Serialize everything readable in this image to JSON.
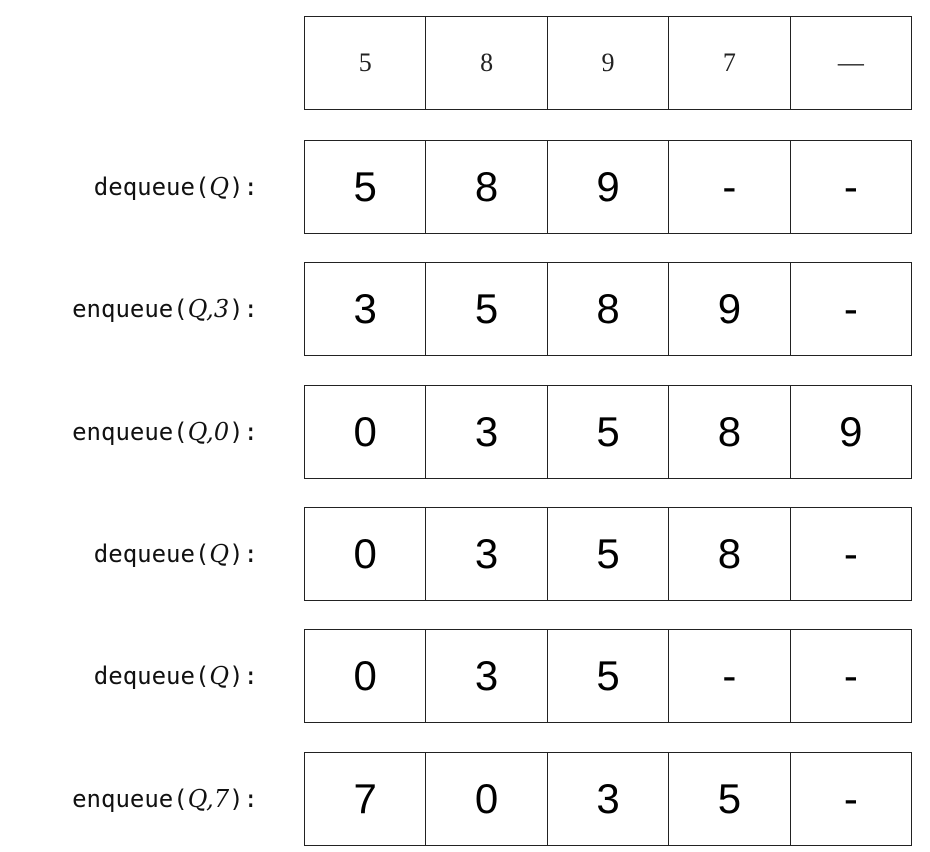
{
  "rows": [
    {
      "label": "",
      "cells": [
        "5",
        "8",
        "9",
        "7",
        "—"
      ]
    },
    {
      "label": "dequeue(Q):",
      "op": "dequeue",
      "args": "Q",
      "cells": [
        "5",
        "8",
        "9",
        "-",
        "-"
      ]
    },
    {
      "label": "enqueue(Q,3):",
      "op": "enqueue",
      "args": "Q,3",
      "cells": [
        "3",
        "5",
        "8",
        "9",
        "-"
      ]
    },
    {
      "label": "enqueue(Q,0):",
      "op": "enqueue",
      "args": "Q,0",
      "cells": [
        "0",
        "3",
        "5",
        "8",
        "9"
      ]
    },
    {
      "label": "dequeue(Q):",
      "op": "dequeue",
      "args": "Q",
      "cells": [
        "0",
        "3",
        "5",
        "8",
        "-"
      ]
    },
    {
      "label": "dequeue(Q):",
      "op": "dequeue",
      "args": "Q",
      "cells": [
        "0",
        "3",
        "5",
        "-",
        "-"
      ]
    },
    {
      "label": "enqueue(Q,7):",
      "op": "enqueue",
      "args": "Q,7",
      "cells": [
        "7",
        "0",
        "3",
        "5",
        "-"
      ]
    }
  ]
}
